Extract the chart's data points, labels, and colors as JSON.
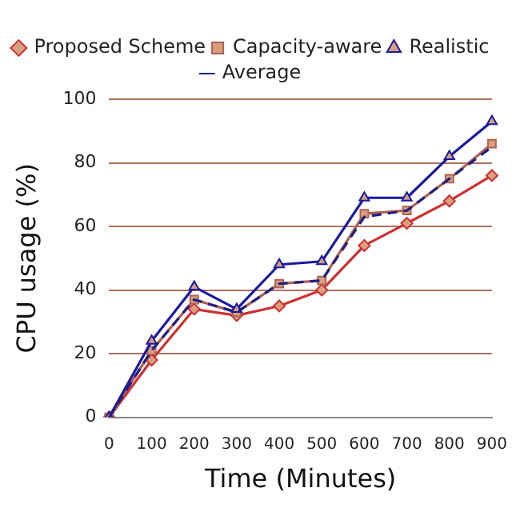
{
  "chart_data": {
    "type": "line",
    "xlabel": "Time (Minutes)",
    "ylabel": "CPU usage (%)",
    "categories": [
      "0",
      "100",
      "200",
      "300",
      "400",
      "500",
      "600",
      "700",
      "800",
      "900"
    ],
    "series": [
      {
        "name": "Proposed Scheme",
        "color": "#d03030",
        "marker": "diamond",
        "values": [
          0,
          18,
          34,
          32,
          35,
          40,
          54,
          61,
          68,
          76
        ]
      },
      {
        "name": "Capacity-aware",
        "color": "#b06050",
        "marker": "square",
        "values": [
          0,
          21,
          37,
          33,
          42,
          43,
          64,
          65,
          75,
          86
        ]
      },
      {
        "name": "Realistic",
        "color": "#1a1aa0",
        "marker": "triangle",
        "values": [
          0,
          24,
          41,
          34,
          48,
          49,
          69,
          69,
          82,
          93
        ]
      },
      {
        "name": "Average",
        "color": "#202080",
        "marker": "none",
        "line_style": "dashed",
        "values": [
          0,
          21,
          37,
          33,
          42,
          43,
          63,
          65,
          75,
          85
        ]
      }
    ],
    "ylim": [
      0,
      100
    ],
    "yticks": [
      0,
      20,
      40,
      60,
      80,
      100
    ],
    "grid": "y",
    "legend": "top"
  }
}
